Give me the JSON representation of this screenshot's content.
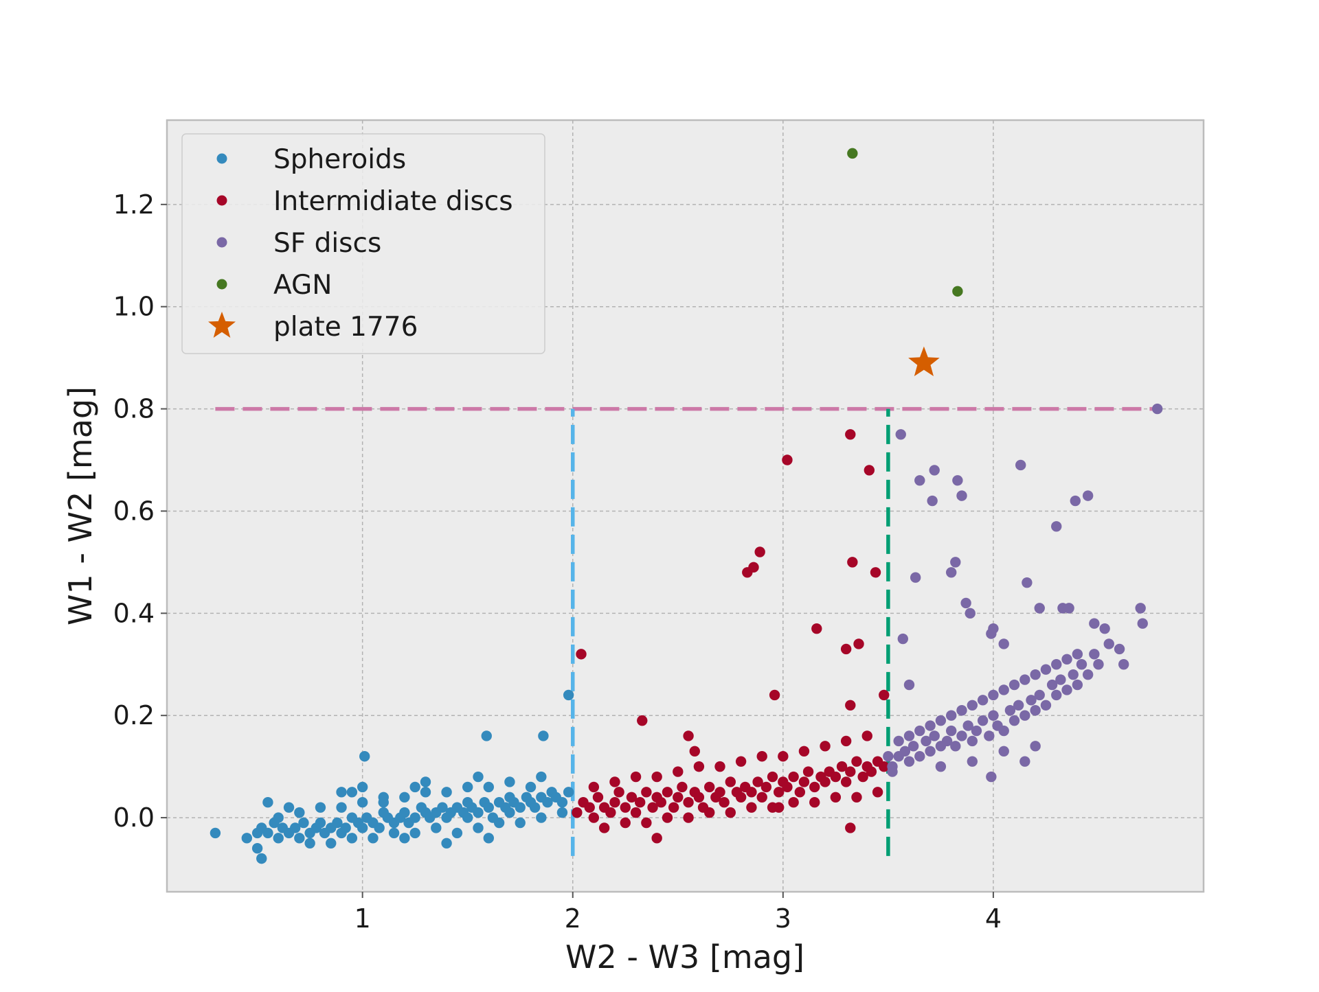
{
  "chart_data": {
    "type": "scatter",
    "title": "",
    "xlabel": "W2 - W3 [mag]",
    "ylabel": "W1 - W2 [mag]",
    "xlim": [
      0.07,
      5.0
    ],
    "ylim": [
      -0.145,
      1.365
    ],
    "x_ticks": [
      1,
      2,
      3,
      4
    ],
    "x_tick_labels": [
      "1",
      "2",
      "3",
      "4"
    ],
    "y_ticks": [
      0.0,
      0.2,
      0.4,
      0.6,
      0.8,
      1.0,
      1.2
    ],
    "y_tick_labels": [
      "0.0",
      "0.2",
      "0.4",
      "0.6",
      "0.8",
      "1.0",
      "1.2"
    ],
    "grid": true,
    "legend_position": "top-left",
    "background_color": "#ececec",
    "reference_lines": [
      {
        "orientation": "horizontal",
        "y": 0.8,
        "x_from": 0.3,
        "x_to": 4.78,
        "color": "#cc79a7",
        "style": "dashed"
      },
      {
        "orientation": "vertical",
        "x": 2.0,
        "y_from": -0.075,
        "y_to": 0.8,
        "color": "#56b4e9",
        "style": "dashed"
      },
      {
        "orientation": "vertical",
        "x": 3.5,
        "y_from": -0.075,
        "y_to": 0.8,
        "color": "#009e73",
        "style": "dashed"
      }
    ],
    "series": [
      {
        "name": "Spheroids",
        "marker": "circle",
        "color": "#348abd",
        "x": [
          0.3,
          0.45,
          0.5,
          0.52,
          0.55,
          0.58,
          0.6,
          0.62,
          0.65,
          0.68,
          0.7,
          0.72,
          0.75,
          0.78,
          0.8,
          0.82,
          0.85,
          0.88,
          0.9,
          0.92,
          0.95,
          0.98,
          1.0,
          1.02,
          1.05,
          1.08,
          1.1,
          1.12,
          1.15,
          1.18,
          1.2,
          1.22,
          1.25,
          1.28,
          1.3,
          1.32,
          1.35,
          1.38,
          1.4,
          1.42,
          1.45,
          1.48,
          1.5,
          1.52,
          1.55,
          1.58,
          1.6,
          1.62,
          1.65,
          1.68,
          1.7,
          1.72,
          1.75,
          1.78,
          1.8,
          1.82,
          1.85,
          1.88,
          1.9,
          1.92,
          1.95,
          1.98,
          0.6,
          0.7,
          0.8,
          0.9,
          1.0,
          1.1,
          1.2,
          1.3,
          1.4,
          1.5,
          1.6,
          1.7,
          1.8,
          0.75,
          0.85,
          0.95,
          1.05,
          1.15,
          1.25,
          1.35,
          1.45,
          1.55,
          1.65,
          1.75,
          1.85,
          1.95,
          0.55,
          0.65,
          0.95,
          1.25,
          1.55,
          1.85,
          1.01,
          1.0,
          1.59,
          1.86,
          1.98,
          0.52,
          0.5,
          1.2,
          1.4,
          1.6,
          1.3,
          1.1,
          0.9,
          1.7,
          1.5
        ],
        "y": [
          -0.03,
          -0.04,
          -0.03,
          -0.02,
          -0.03,
          -0.01,
          -0.04,
          -0.02,
          -0.03,
          -0.02,
          -0.04,
          -0.01,
          -0.03,
          -0.02,
          -0.01,
          -0.03,
          -0.02,
          -0.01,
          -0.03,
          -0.02,
          0.0,
          -0.01,
          -0.02,
          0.0,
          -0.01,
          -0.02,
          0.01,
          0.0,
          -0.01,
          0.0,
          0.01,
          -0.01,
          0.0,
          0.02,
          0.01,
          0.0,
          0.01,
          0.02,
          0.0,
          0.01,
          0.02,
          0.01,
          0.0,
          0.02,
          0.01,
          0.03,
          0.02,
          0.0,
          0.03,
          0.02,
          0.01,
          0.03,
          0.02,
          0.04,
          0.03,
          0.02,
          0.04,
          0.03,
          0.05,
          0.04,
          0.03,
          0.05,
          0.0,
          0.01,
          0.02,
          0.02,
          0.03,
          0.03,
          0.04,
          0.05,
          0.05,
          0.06,
          0.06,
          0.07,
          0.06,
          -0.05,
          -0.05,
          -0.04,
          -0.04,
          -0.03,
          -0.03,
          -0.02,
          -0.03,
          -0.02,
          -0.01,
          -0.01,
          0.0,
          0.01,
          0.03,
          0.02,
          0.05,
          0.06,
          0.08,
          0.08,
          0.12,
          0.06,
          0.16,
          0.16,
          0.24,
          -0.08,
          -0.06,
          -0.04,
          -0.05,
          -0.04,
          0.07,
          0.04,
          0.05,
          0.04,
          0.03
        ],
        "size": 10
      },
      {
        "name": "Intermidiate discs",
        "marker": "circle",
        "color": "#a60628",
        "x": [
          2.02,
          2.05,
          2.08,
          2.1,
          2.12,
          2.15,
          2.18,
          2.2,
          2.22,
          2.25,
          2.28,
          2.3,
          2.32,
          2.35,
          2.38,
          2.4,
          2.42,
          2.45,
          2.48,
          2.5,
          2.52,
          2.55,
          2.58,
          2.6,
          2.62,
          2.65,
          2.68,
          2.7,
          2.72,
          2.75,
          2.78,
          2.8,
          2.82,
          2.85,
          2.88,
          2.9,
          2.92,
          2.95,
          2.98,
          3.0,
          3.02,
          3.05,
          3.08,
          3.1,
          3.12,
          3.15,
          3.18,
          3.2,
          3.22,
          3.25,
          3.28,
          3.3,
          3.32,
          3.35,
          3.38,
          3.4,
          3.42,
          3.45,
          3.48,
          2.1,
          2.2,
          2.3,
          2.4,
          2.5,
          2.6,
          2.7,
          2.8,
          2.9,
          3.0,
          3.1,
          3.2,
          3.3,
          3.4,
          2.15,
          2.25,
          2.35,
          2.45,
          2.55,
          2.65,
          2.75,
          2.85,
          2.95,
          3.05,
          3.15,
          3.25,
          3.35,
          3.45,
          2.04,
          2.33,
          2.55,
          2.83,
          2.86,
          2.89,
          2.96,
          3.02,
          3.16,
          3.3,
          3.32,
          3.33,
          3.36,
          3.41,
          3.44,
          3.32,
          3.32,
          2.4,
          2.58,
          2.98,
          3.48
        ],
        "y": [
          0.01,
          0.03,
          0.02,
          0.0,
          0.04,
          0.02,
          0.01,
          0.03,
          0.05,
          0.02,
          0.04,
          0.01,
          0.03,
          0.05,
          0.02,
          0.04,
          0.03,
          0.05,
          0.02,
          0.04,
          0.06,
          0.03,
          0.05,
          0.04,
          0.02,
          0.06,
          0.04,
          0.05,
          0.03,
          0.07,
          0.05,
          0.04,
          0.06,
          0.05,
          0.07,
          0.04,
          0.06,
          0.08,
          0.05,
          0.07,
          0.06,
          0.08,
          0.05,
          0.07,
          0.09,
          0.06,
          0.08,
          0.07,
          0.09,
          0.08,
          0.1,
          0.07,
          0.09,
          0.11,
          0.08,
          0.1,
          0.09,
          0.11,
          0.1,
          0.06,
          0.07,
          0.08,
          0.08,
          0.09,
          0.1,
          0.1,
          0.11,
          0.12,
          0.12,
          0.13,
          0.14,
          0.15,
          0.16,
          -0.02,
          -0.01,
          -0.01,
          0.0,
          0.0,
          0.01,
          0.01,
          0.02,
          0.02,
          0.03,
          0.03,
          0.04,
          0.04,
          0.05,
          0.32,
          0.19,
          0.16,
          0.48,
          0.49,
          0.52,
          0.24,
          0.7,
          0.37,
          0.33,
          0.75,
          0.5,
          0.34,
          0.68,
          0.48,
          0.22,
          -0.02,
          -0.04,
          0.13,
          0.02,
          0.24
        ],
        "size": 10
      },
      {
        "name": "SF discs",
        "marker": "circle",
        "color": "#7a68a6",
        "x": [
          3.52,
          3.55,
          3.58,
          3.6,
          3.62,
          3.65,
          3.68,
          3.7,
          3.72,
          3.75,
          3.78,
          3.8,
          3.82,
          3.85,
          3.88,
          3.9,
          3.92,
          3.95,
          3.98,
          4.0,
          4.02,
          4.05,
          4.08,
          4.1,
          4.12,
          4.15,
          4.18,
          4.2,
          4.22,
          4.25,
          4.28,
          4.3,
          4.32,
          4.35,
          4.38,
          4.4,
          4.42,
          4.45,
          4.48,
          4.5,
          4.55,
          4.6,
          3.55,
          3.6,
          3.65,
          3.7,
          3.75,
          3.8,
          3.85,
          3.9,
          3.95,
          4.0,
          4.05,
          4.1,
          4.15,
          4.2,
          4.25,
          4.3,
          4.35,
          4.4,
          3.56,
          3.57,
          3.63,
          3.65,
          3.71,
          3.72,
          3.8,
          3.82,
          3.83,
          3.85,
          3.87,
          3.89,
          3.99,
          4.0,
          4.05,
          4.13,
          4.16,
          4.22,
          4.3,
          4.33,
          4.36,
          4.39,
          4.45,
          4.48,
          4.53,
          4.62,
          4.7,
          4.71,
          4.78,
          3.6,
          3.99,
          4.15,
          3.5,
          3.52,
          3.75,
          3.9,
          4.05,
          4.2
        ],
        "y": [
          0.1,
          0.12,
          0.13,
          0.11,
          0.14,
          0.12,
          0.15,
          0.13,
          0.16,
          0.14,
          0.15,
          0.17,
          0.14,
          0.16,
          0.18,
          0.15,
          0.17,
          0.19,
          0.16,
          0.2,
          0.18,
          0.17,
          0.21,
          0.19,
          0.22,
          0.2,
          0.23,
          0.21,
          0.24,
          0.22,
          0.26,
          0.24,
          0.27,
          0.25,
          0.28,
          0.26,
          0.3,
          0.28,
          0.32,
          0.3,
          0.34,
          0.33,
          0.15,
          0.16,
          0.17,
          0.18,
          0.19,
          0.2,
          0.21,
          0.22,
          0.23,
          0.24,
          0.25,
          0.26,
          0.27,
          0.28,
          0.29,
          0.3,
          0.31,
          0.32,
          0.75,
          0.35,
          0.47,
          0.66,
          0.62,
          0.68,
          0.48,
          0.5,
          0.66,
          0.63,
          0.42,
          0.4,
          0.36,
          0.37,
          0.34,
          0.69,
          0.46,
          0.41,
          0.57,
          0.41,
          0.41,
          0.62,
          0.63,
          0.38,
          0.37,
          0.3,
          0.41,
          0.38,
          0.8,
          0.26,
          0.08,
          0.11,
          0.12,
          0.09,
          0.1,
          0.11,
          0.13,
          0.14
        ],
        "size": 10
      },
      {
        "name": "AGN",
        "marker": "circle",
        "color": "#467821",
        "x": [
          3.33,
          3.83
        ],
        "y": [
          1.3,
          1.03
        ],
        "size": 10
      },
      {
        "name": "plate 1776",
        "marker": "star",
        "color": "#d55e00",
        "x": [
          3.67
        ],
        "y": [
          0.89
        ],
        "size": 24
      }
    ]
  }
}
